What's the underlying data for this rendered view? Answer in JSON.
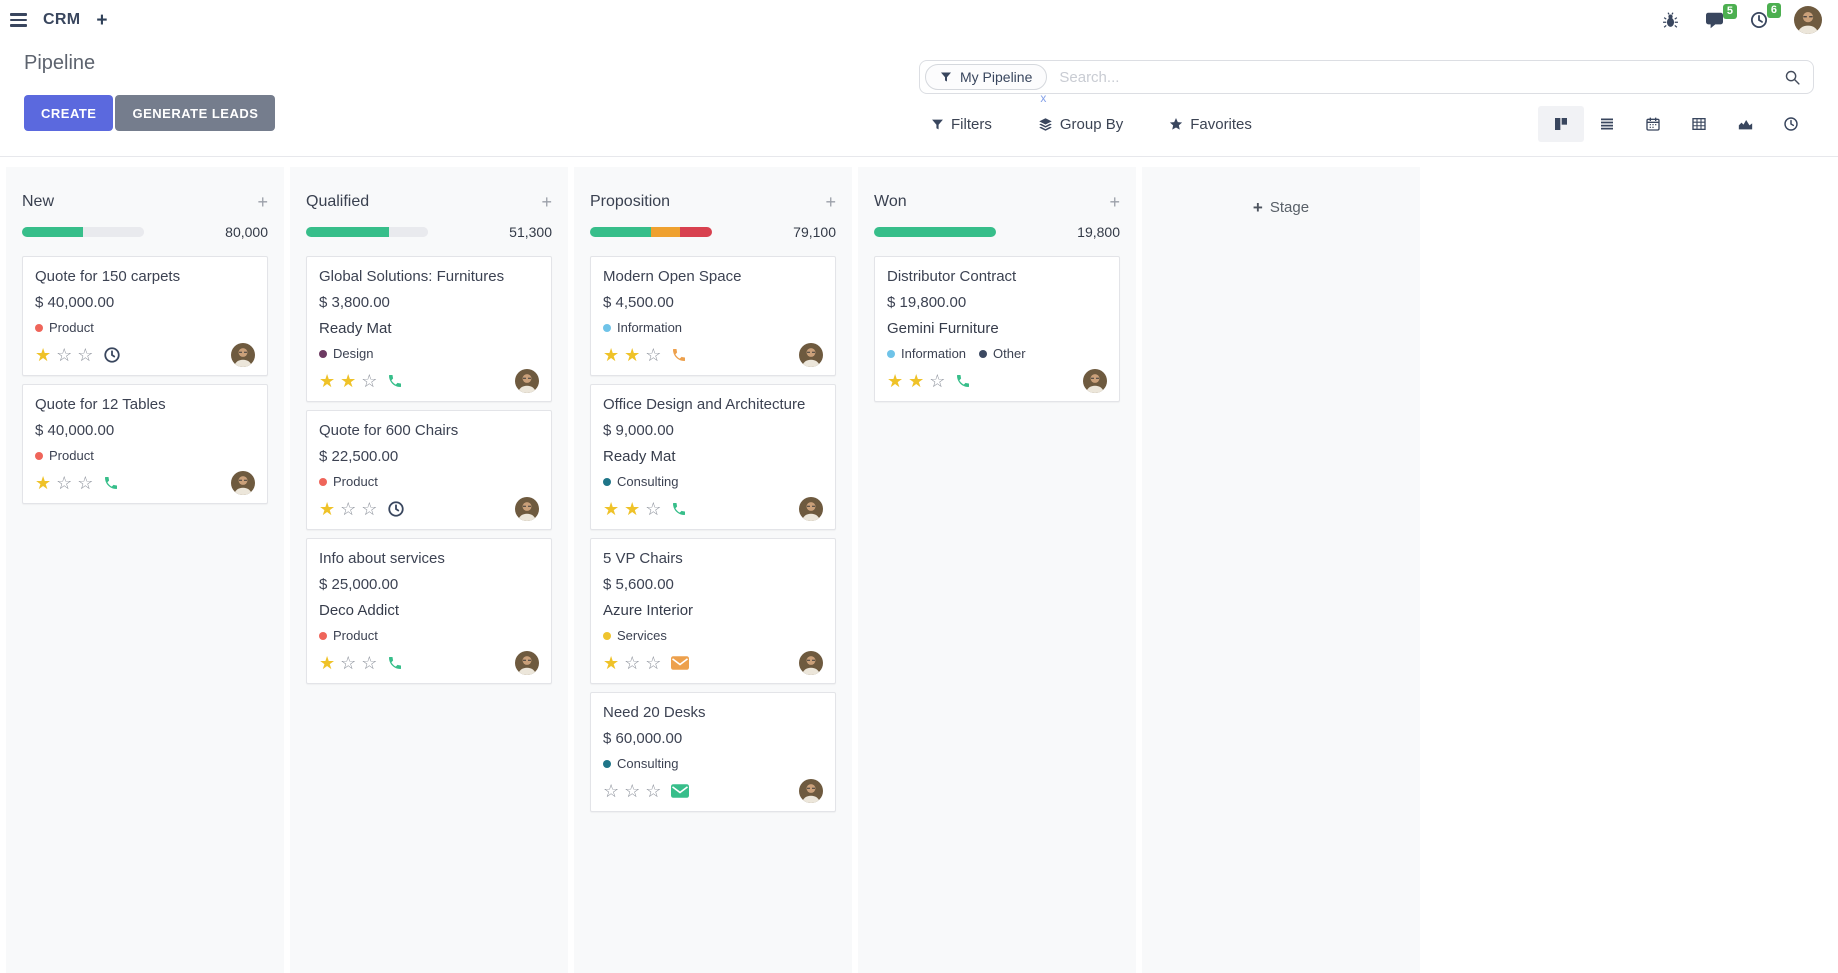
{
  "topbar": {
    "app_name": "CRM",
    "messages_badge": "5",
    "activities_badge": "6"
  },
  "control_panel": {
    "title": "Pipeline",
    "create_label": "CREATE",
    "generate_leads_label": "GENERATE LEADS",
    "search": {
      "facet_label": "My Pipeline",
      "placeholder": "Search...",
      "facet_remove": "x"
    },
    "filters_label": "Filters",
    "group_by_label": "Group By",
    "favorites_label": "Favorites",
    "view_switcher": [
      {
        "name": "kanban",
        "active": true
      },
      {
        "name": "list",
        "active": false
      },
      {
        "name": "calendar",
        "active": false
      },
      {
        "name": "pivot",
        "active": false
      },
      {
        "name": "graph",
        "active": false
      },
      {
        "name": "activity",
        "active": false
      }
    ]
  },
  "colors": {
    "primary": "#5b69de",
    "secondary": "#757d8d",
    "success": "#37be8a",
    "warning": "#efa12f",
    "danger": "#d8414f",
    "star": "#efc228",
    "badge": "#4caf50",
    "bar_bg": "#e9eaee"
  },
  "kanban": {
    "add_stage_label": "Stage",
    "columns": [
      {
        "name": "New",
        "total": "80,000",
        "progress": [
          {
            "color": "#37be8a",
            "pct": 50
          },
          {
            "color": "#e9eaee",
            "pct": 50
          }
        ],
        "cards": [
          {
            "title": "Quote for 150 carpets",
            "amount": "$ 40,000.00",
            "partner": "",
            "tags": [
              {
                "label": "Product",
                "color": "#ef655a"
              }
            ],
            "stars": 1,
            "activity": {
              "icon": "clock",
              "color": "#39465e"
            }
          },
          {
            "title": "Quote for 12 Tables",
            "amount": "$ 40,000.00",
            "partner": "",
            "tags": [
              {
                "label": "Product",
                "color": "#ef655a"
              }
            ],
            "stars": 1,
            "activity": {
              "icon": "phone",
              "color": "#37be8a"
            }
          }
        ]
      },
      {
        "name": "Qualified",
        "total": "51,300",
        "progress": [
          {
            "color": "#37be8a",
            "pct": 68
          },
          {
            "color": "#e9eaee",
            "pct": 32
          }
        ],
        "cards": [
          {
            "title": "Global Solutions: Furnitures",
            "amount": "$ 3,800.00",
            "partner": "Ready Mat",
            "tags": [
              {
                "label": "Design",
                "color": "#6d3a62"
              }
            ],
            "stars": 2,
            "activity": {
              "icon": "phone",
              "color": "#37be8a"
            }
          },
          {
            "title": "Quote for 600 Chairs",
            "amount": "$ 22,500.00",
            "partner": "",
            "tags": [
              {
                "label": "Product",
                "color": "#ef655a"
              }
            ],
            "stars": 1,
            "activity": {
              "icon": "clock",
              "color": "#39465e"
            }
          },
          {
            "title": "Info about services",
            "amount": "$ 25,000.00",
            "partner": "Deco Addict",
            "tags": [
              {
                "label": "Product",
                "color": "#ef655a"
              }
            ],
            "stars": 1,
            "activity": {
              "icon": "phone",
              "color": "#37be8a"
            }
          }
        ]
      },
      {
        "name": "Proposition",
        "total": "79,100",
        "progress": [
          {
            "color": "#37be8a",
            "pct": 50
          },
          {
            "color": "#efa12f",
            "pct": 24
          },
          {
            "color": "#d8414f",
            "pct": 26
          }
        ],
        "cards": [
          {
            "title": "Modern Open Space",
            "amount": "$ 4,500.00",
            "partner": "",
            "tags": [
              {
                "label": "Information",
                "color": "#6fc3e8"
              }
            ],
            "stars": 2,
            "activity": {
              "icon": "phone",
              "color": "#eda04c"
            }
          },
          {
            "title": "Office Design and Architecture",
            "amount": "$ 9,000.00",
            "partner": "Ready Mat",
            "tags": [
              {
                "label": "Consulting",
                "color": "#1f7588"
              }
            ],
            "stars": 2,
            "activity": {
              "icon": "phone",
              "color": "#37be8a"
            }
          },
          {
            "title": "5 VP Chairs",
            "amount": "$ 5,600.00",
            "partner": "Azure Interior",
            "tags": [
              {
                "label": "Services",
                "color": "#efc42e"
              }
            ],
            "stars": 1,
            "activity": {
              "icon": "envelope",
              "color": "#eda04c"
            }
          },
          {
            "title": "Need 20 Desks",
            "amount": "$ 60,000.00",
            "partner": "",
            "tags": [
              {
                "label": "Consulting",
                "color": "#1f7588"
              }
            ],
            "stars": 0,
            "activity": {
              "icon": "envelope",
              "color": "#37be8a"
            }
          }
        ]
      },
      {
        "name": "Won",
        "total": "19,800",
        "progress": [
          {
            "color": "#37be8a",
            "pct": 100
          }
        ],
        "cards": [
          {
            "title": "Distributor Contract",
            "amount": "$ 19,800.00",
            "partner": "Gemini Furniture",
            "tags": [
              {
                "label": "Information",
                "color": "#6fc3e8"
              },
              {
                "label": "Other",
                "color": "#3c4961"
              }
            ],
            "stars": 2,
            "activity": {
              "icon": "phone",
              "color": "#37be8a"
            }
          }
        ]
      }
    ]
  }
}
